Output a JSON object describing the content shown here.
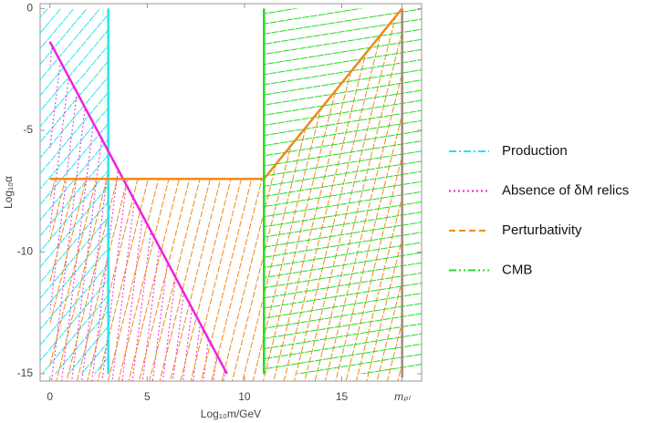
{
  "chart_data": {
    "type": "region",
    "x_label": "Log₁₀m/GeV",
    "y_label": "Log₁₀α",
    "xlim": [
      -0.5,
      19.1
    ],
    "ylim": [
      -15.3,
      0.2
    ],
    "xticks": [
      0,
      5,
      10,
      15,
      {
        "value": 18.1,
        "label": "mₚₗ"
      }
    ],
    "yticks": [
      0,
      -5,
      -10,
      -15
    ],
    "series": [
      {
        "name": "Production",
        "color": "#22e5f0",
        "dash": "dashdot",
        "fill": "left",
        "x": [
          3,
          3
        ],
        "y": [
          -15,
          0
        ]
      },
      {
        "name": "Absence of δM relics",
        "color": "#ee22dd",
        "dash": "dotted",
        "fill": "below",
        "x": [
          0,
          9.1
        ],
        "y": [
          -1.36,
          -15
        ]
      },
      {
        "name": "Perturbativity",
        "color": "#f08a1c",
        "dash": "dashed",
        "fill": "below",
        "x": [
          0,
          11,
          18.1
        ],
        "y": [
          -7,
          -7,
          0
        ]
      },
      {
        "name": "CMB",
        "color": "#22dd22",
        "dash": "dashdotdot",
        "fill": "right",
        "x": [
          11,
          11
        ],
        "y": [
          -15,
          0
        ]
      }
    ]
  }
}
